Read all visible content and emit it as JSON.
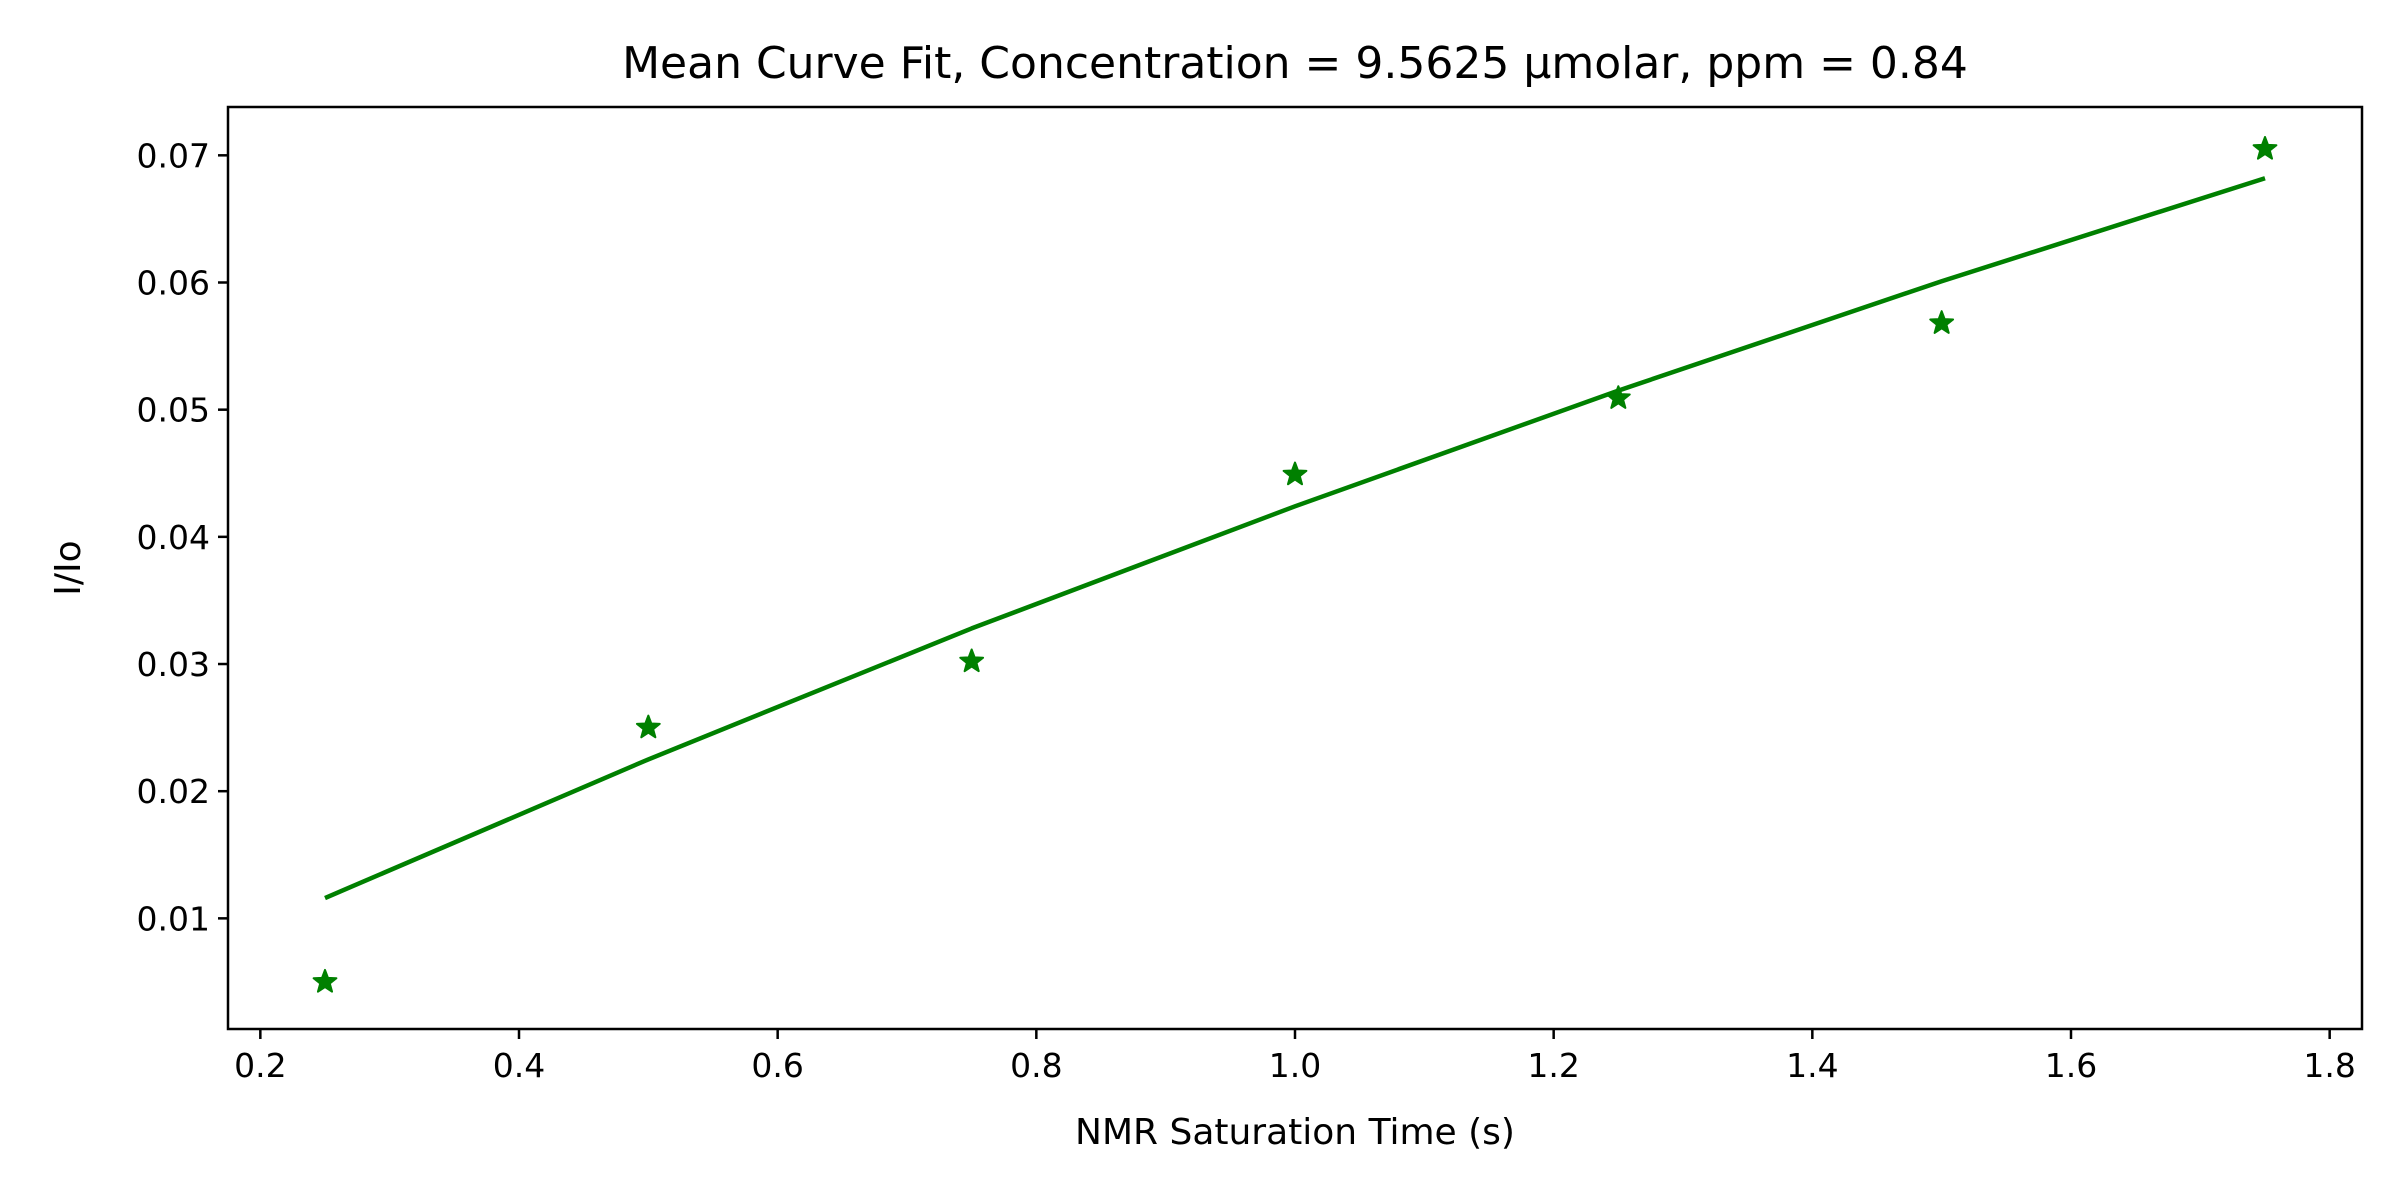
{
  "chart_data": {
    "type": "scatter",
    "title": "Mean Curve Fit, Concentration = 9.5625 µmolar, ppm = 0.84",
    "xlabel": "NMR Saturation Time (s)",
    "ylabel": "I/Io",
    "xlim": [
      0.175,
      1.825
    ],
    "ylim": [
      0.0013,
      0.0738
    ],
    "x_ticks": [
      0.2,
      0.4,
      0.6,
      0.8,
      1.0,
      1.2,
      1.4,
      1.6,
      1.8
    ],
    "x_tick_labels": [
      "0.2",
      "0.4",
      "0.6",
      "0.8",
      "1.0",
      "1.2",
      "1.4",
      "1.6",
      "1.8"
    ],
    "y_ticks": [
      0.01,
      0.02,
      0.03,
      0.04,
      0.05,
      0.06,
      0.07
    ],
    "y_tick_labels": [
      "0.01",
      "0.02",
      "0.03",
      "0.04",
      "0.05",
      "0.06",
      "0.07"
    ],
    "grid": false,
    "legend": "none",
    "color": "#008000",
    "series": [
      {
        "kind": "points",
        "marker": "star",
        "x": [
          0.25,
          0.5,
          0.75,
          1.0,
          1.25,
          1.5,
          1.75
        ],
        "y": [
          0.005,
          0.025,
          0.0302,
          0.0449,
          0.0509,
          0.0568,
          0.0705
        ]
      },
      {
        "kind": "line",
        "x": [
          0.25,
          0.5,
          0.75,
          1.0,
          1.25,
          1.5,
          1.75
        ],
        "y": [
          0.0116,
          0.0225,
          0.0328,
          0.0424,
          0.0515,
          0.0601,
          0.0682
        ]
      }
    ]
  }
}
